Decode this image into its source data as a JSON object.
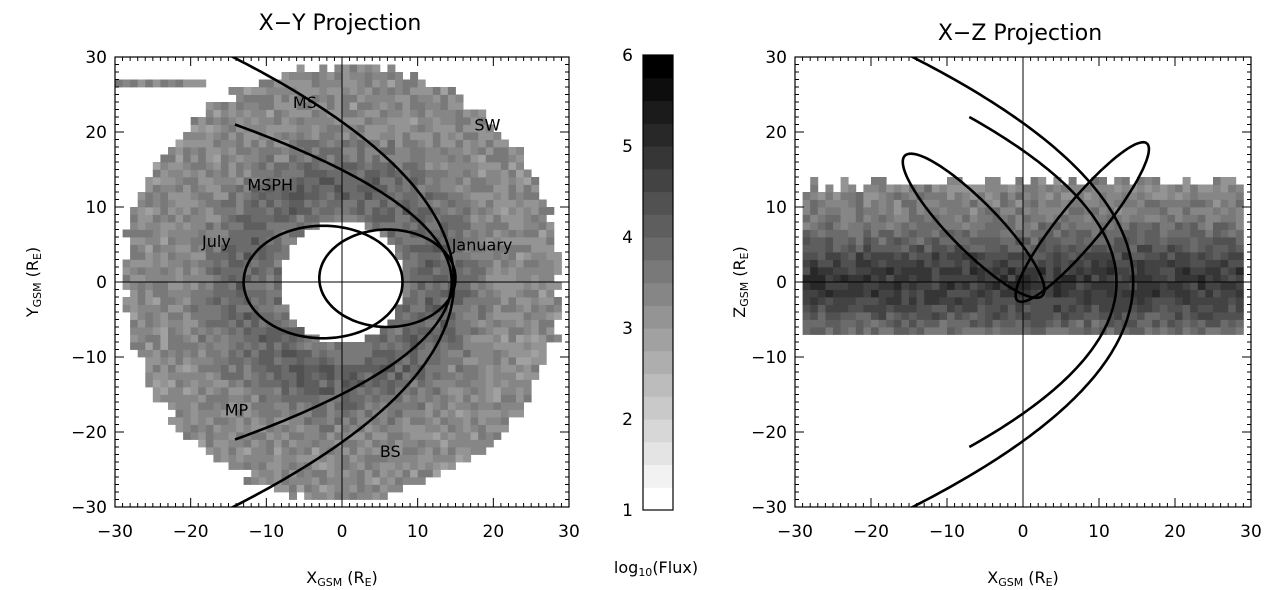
{
  "chart_data": [
    {
      "type": "heatmap",
      "title": "X−Y Projection",
      "xlabel": {
        "main": "X",
        "sub": "GSM",
        "unit": "(R",
        "unit_sub": "E",
        "unit_end": ")"
      },
      "ylabel": {
        "main": "Y",
        "sub": "GSM",
        "unit": "(R",
        "unit_sub": "E",
        "unit_end": ")"
      },
      "xlim": [
        -30,
        30
      ],
      "ylim": [
        -30,
        30
      ],
      "xticks": [
        -30,
        -20,
        -10,
        0,
        10,
        20,
        30
      ],
      "yticks": [
        -30,
        -20,
        -10,
        0,
        10,
        20,
        30
      ],
      "tick_labels": [
        "−30",
        "−20",
        "−10",
        "0",
        "10",
        "20",
        "30"
      ],
      "coverage": {
        "shape": "disk",
        "center": [
          0,
          0
        ],
        "outer_radius": 29.5,
        "inner_radius": 8.0,
        "ring_peak_radius": 13,
        "value_ring": 4.0,
        "value_outer": 3.3
      },
      "curves": [
        {
          "name": "magnetopause",
          "type": "parabola",
          "nose_x": 14.5,
          "k": 15.4,
          "half_extent": 21
        },
        {
          "name": "bow shock",
          "type": "parabola",
          "nose_x": 14.8,
          "k": 30.8,
          "half_extent": 31
        },
        {
          "name": "july orbit",
          "type": "ellipse",
          "center": [
            -2.5,
            0
          ],
          "rx": 10.5,
          "ry": 7.5
        },
        {
          "name": "january orbit",
          "type": "ellipse",
          "center": [
            6,
            0.5
          ],
          "rx": 9,
          "ry": 6.5
        }
      ],
      "annotations": [
        {
          "text": "MS",
          "x": -6.5,
          "y": 24
        },
        {
          "text": "SW",
          "x": 17.5,
          "y": 21
        },
        {
          "text": "MSPH",
          "x": -12.5,
          "y": 13
        },
        {
          "text": "July",
          "x": -18.5,
          "y": 5.5
        },
        {
          "text": "January",
          "x": 14.5,
          "y": 5
        },
        {
          "text": "MP",
          "x": -15.5,
          "y": -17
        },
        {
          "text": "BS",
          "x": 5,
          "y": -22.5
        }
      ]
    },
    {
      "type": "heatmap",
      "title": "X−Z Projection",
      "xlabel": {
        "main": "X",
        "sub": "GSM",
        "unit": "(R",
        "unit_sub": "E",
        "unit_end": ")"
      },
      "ylabel": {
        "main": "Z",
        "sub": "GSM",
        "unit": "(R",
        "unit_sub": "E",
        "unit_end": ")"
      },
      "xlim": [
        -30,
        30
      ],
      "ylim": [
        -30,
        30
      ],
      "xticks": [
        -30,
        -20,
        -10,
        0,
        10,
        20,
        30
      ],
      "yticks": [
        -30,
        -20,
        -10,
        0,
        10,
        20,
        30
      ],
      "tick_labels": [
        "−30",
        "−20",
        "−10",
        "0",
        "10",
        "20",
        "30"
      ],
      "coverage": {
        "shape": "band",
        "x_range": [
          -29.5,
          29
        ],
        "z_range": [
          -7,
          14
        ],
        "core_z": 0,
        "value_core": 4.8,
        "value_edge": 3.4
      },
      "curves": [
        {
          "name": "magnetopause",
          "type": "parabola",
          "nose_x": 12.3,
          "k": 25,
          "half_extent": 22
        },
        {
          "name": "bow shock",
          "type": "parabola",
          "nose_x": 14.5,
          "k": 31,
          "half_extent": 31
        },
        {
          "name": "july orbit",
          "type": "ellipse",
          "center": [
            -6.5,
            7.5
          ],
          "rx": 13,
          "ry": 3.2,
          "angle_deg": -46
        },
        {
          "name": "january orbit",
          "type": "ellipse",
          "center": [
            7.8,
            8
          ],
          "rx": 13.5,
          "ry": 2.8,
          "angle_deg": 51
        }
      ]
    }
  ],
  "colorbar": {
    "label_prefix": "log",
    "label_sub": "10",
    "label_suffix": "(Flux)",
    "range": [
      1,
      6
    ],
    "ticks": [
      "1",
      "2",
      "3",
      "4",
      "5",
      "6"
    ],
    "levels": 20
  }
}
